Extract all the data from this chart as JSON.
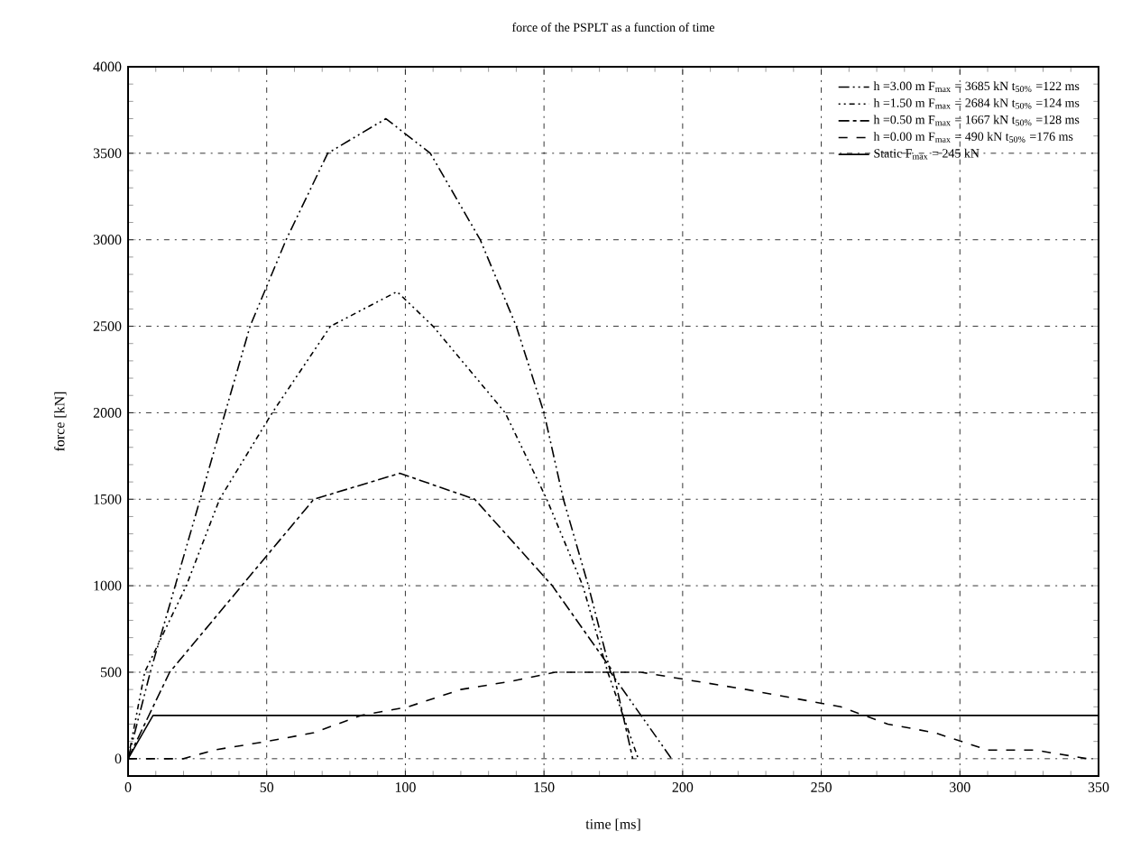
{
  "chart_data": {
    "type": "line",
    "title": "force of the PSPLT as a function of time",
    "xlabel": "time [ms]",
    "ylabel": "force [kN]",
    "xlim": [
      0,
      350
    ],
    "ylim": [
      -100,
      4000
    ],
    "xticks": [
      0,
      50,
      100,
      150,
      200,
      250,
      300,
      350
    ],
    "yticks": [
      0,
      500,
      1000,
      1500,
      2000,
      2500,
      3000,
      3500,
      4000
    ],
    "grid": true,
    "legend": "top right",
    "marker": "none",
    "series": [
      {
        "name": "h =3.00 m F$_{max}$ = 3685 kN t$_{50%}$ =122 ms",
        "color": "#000000",
        "line_style": "dashdot",
        "x": [
          0,
          8,
          17,
          26,
          35,
          44,
          57,
          72,
          93,
          109,
          127,
          140,
          150,
          157,
          166,
          174,
          196
        ],
        "values": [
          0,
          500,
          1000,
          1500,
          2000,
          2500,
          3000,
          3500,
          3700,
          3500,
          3000,
          2500,
          2000,
          1500,
          1000,
          500,
          0
        ]
      },
      {
        "name": "h =1.50 m F$_{max}$ = 2684 kN t$_{50%}$ =124 ms",
        "color": "#000000",
        "line_style": "dotted",
        "x": [
          0,
          6,
          21,
          33,
          52,
          73,
          97,
          110,
          136,
          151,
          164,
          173,
          184
        ],
        "values": [
          0,
          500,
          1000,
          1500,
          2000,
          2500,
          2700,
          2500,
          2000,
          1500,
          1000,
          500,
          0
        ]
      },
      {
        "name": "h =0.50 m F$_{max}$ = 1667 kN t$_{50%}$ =128 ms",
        "color": "#000000",
        "line_style": "dashed",
        "x": [
          0,
          15,
          41,
          67,
          98,
          125,
          153,
          175,
          182
        ],
        "values": [
          0,
          500,
          1000,
          1500,
          1650,
          1500,
          1000,
          500,
          0
        ]
      },
      {
        "name": "h =0.00 m F$_{max}$ = 490 kN t$_{50%}$ =176 ms",
        "color": "#000000",
        "line_style": "loosely dashed",
        "x": [
          0,
          20,
          31,
          50,
          67,
          84,
          101,
          120,
          139,
          154,
          170,
          185,
          204,
          223,
          240,
          257,
          274,
          291,
          310,
          327,
          346
        ],
        "values": [
          0,
          0,
          50,
          100,
          150,
          250,
          300,
          400,
          450,
          500,
          500,
          500,
          450,
          400,
          350,
          300,
          200,
          150,
          50,
          50,
          0
        ]
      },
      {
        "name": "Static F$_{max}$ = 245 kN",
        "color": "#000000",
        "line_style": "solid",
        "x": [
          0,
          9,
          350
        ],
        "values": [
          0,
          250,
          250
        ]
      }
    ]
  }
}
